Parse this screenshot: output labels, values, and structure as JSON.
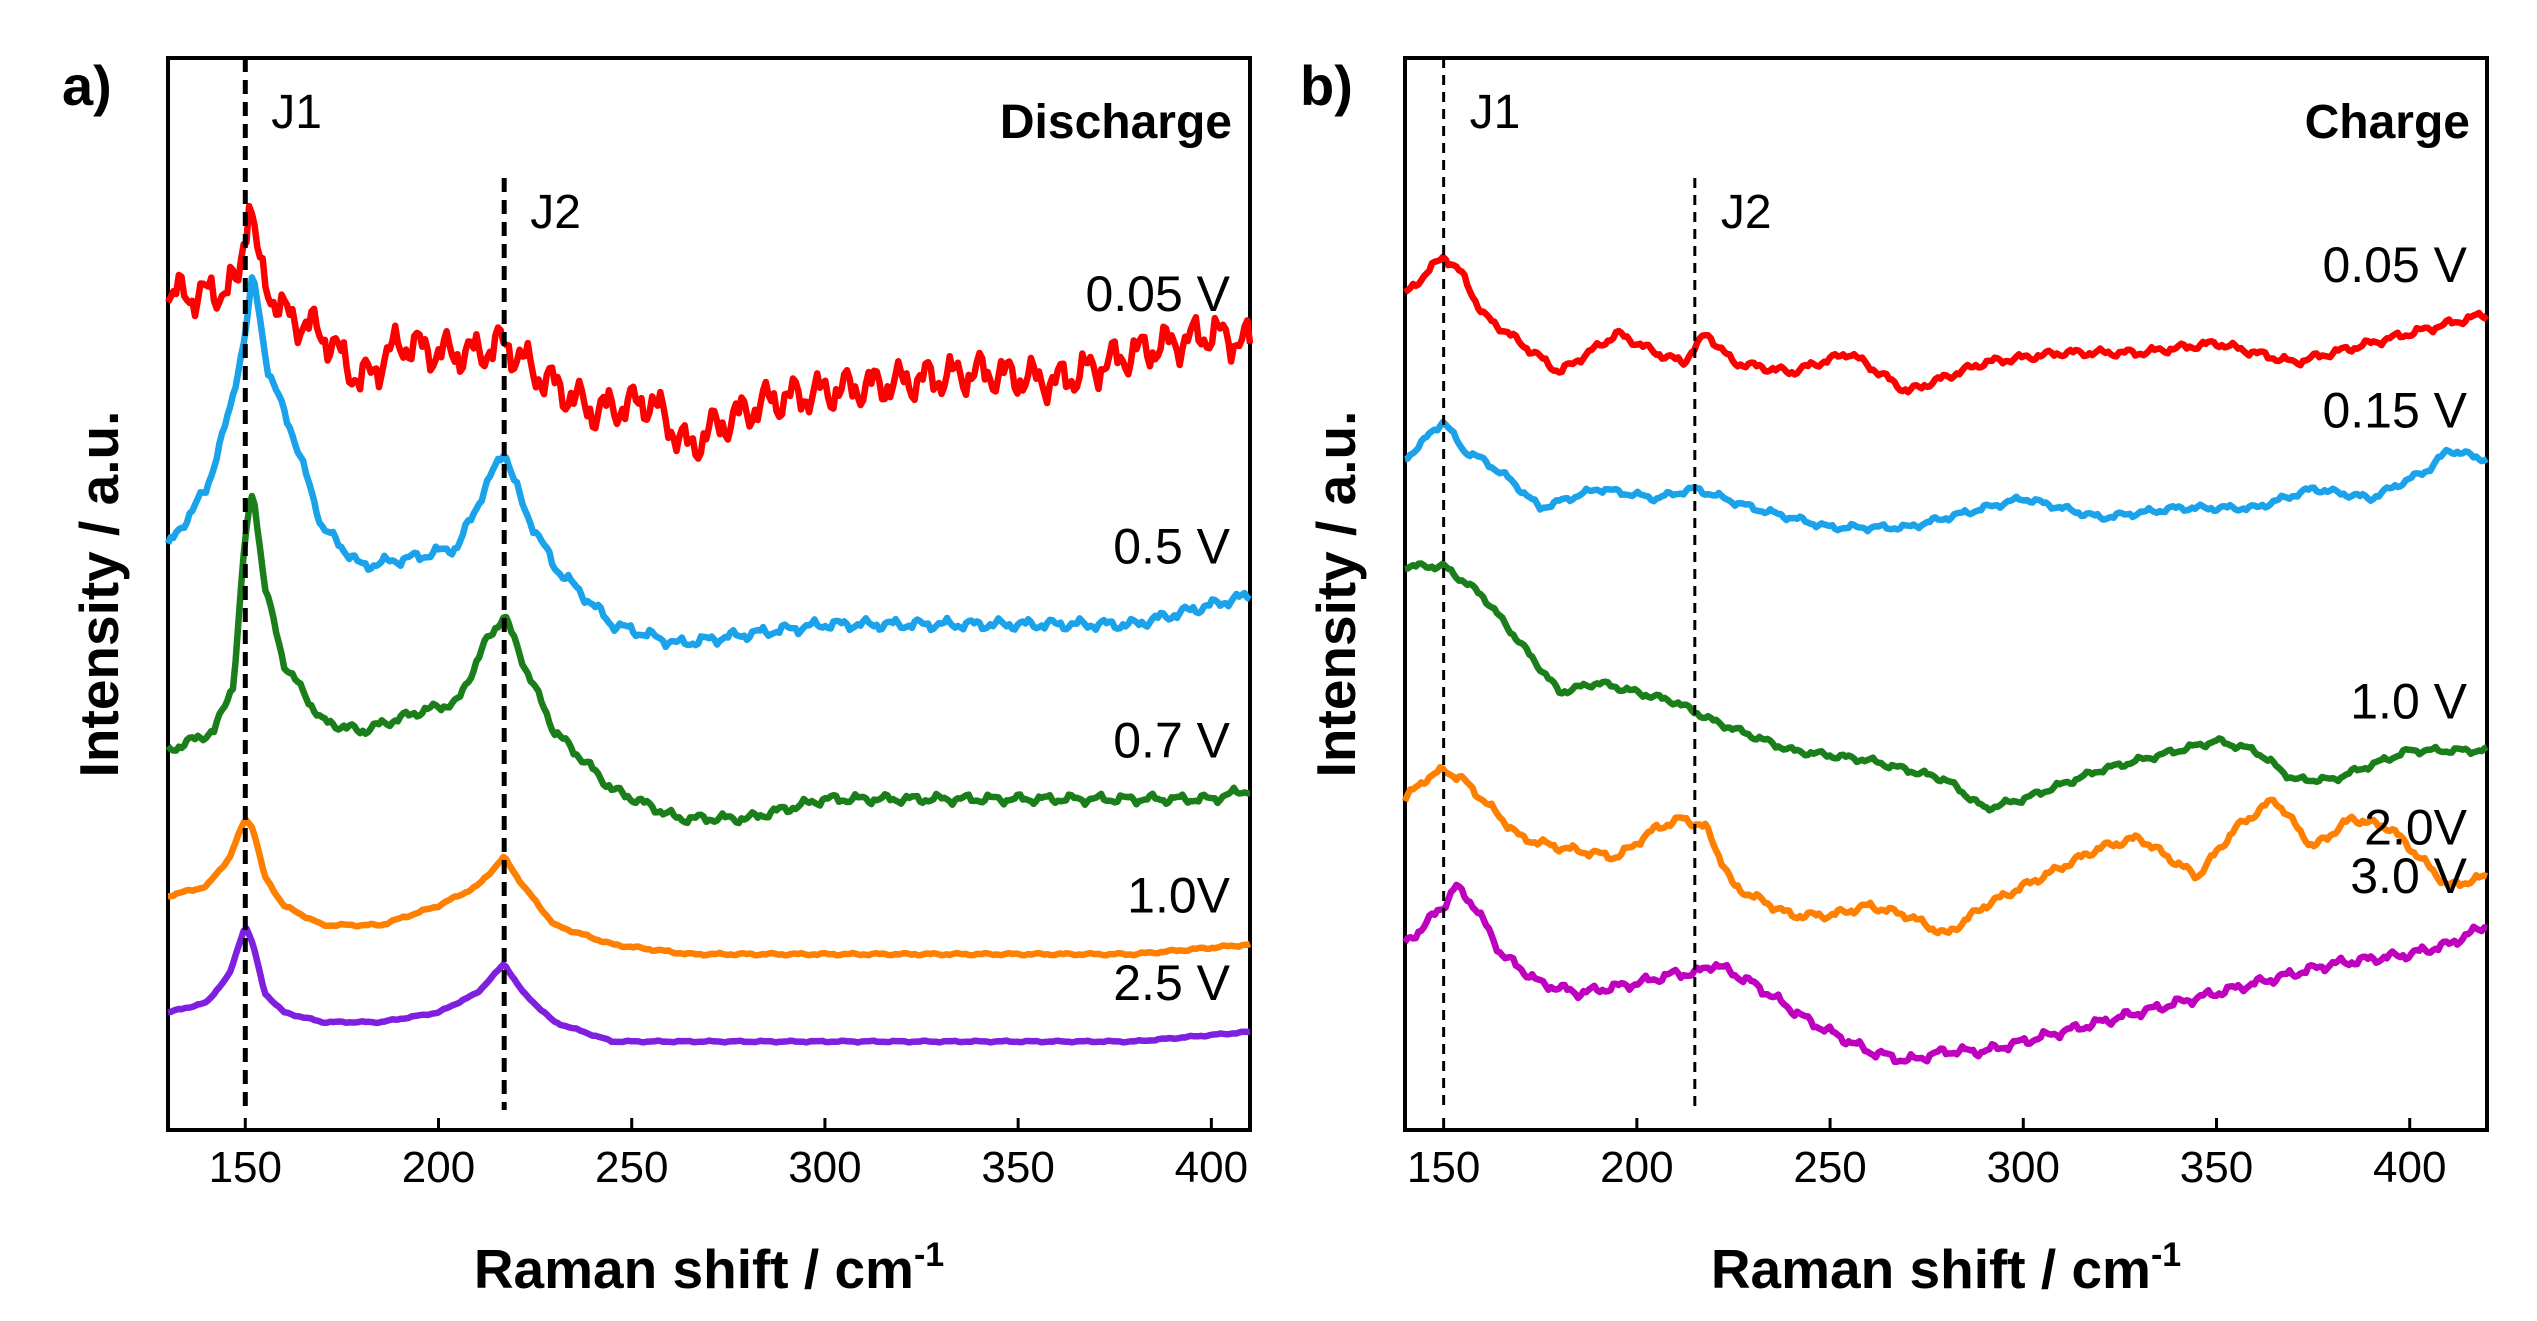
{
  "chart_data": [
    {
      "panel": "a)",
      "type": "line",
      "title": "Discharge",
      "xlabel": "Raman shift / cm",
      "xlabel_sup": "-1",
      "ylabel": "Intensity / a.u.",
      "xlim": [
        130,
        410
      ],
      "xticks": [
        150,
        200,
        250,
        300,
        350,
        400
      ],
      "ylim": [
        0,
        100
      ],
      "peaks": [
        {
          "name": "J1",
          "x": 150
        },
        {
          "name": "J2",
          "x": 217
        }
      ],
      "series": [
        {
          "name": "0.05 V",
          "color": "#ff0000",
          "noise": 2.6,
          "x": [
            130,
            140,
            148,
            151,
            154,
            160,
            170,
            180,
            190,
            200,
            210,
            217,
            225,
            240,
            255,
            265,
            270,
            285,
            300,
            320,
            340,
            360,
            380,
            400,
            410
          ],
          "y": [
            82,
            82,
            83,
            92,
            84,
            80,
            78,
            73,
            77,
            76,
            76,
            77,
            74,
            70,
            71,
            66,
            68,
            71,
            72,
            73,
            74,
            73,
            76,
            78,
            77
          ]
        },
        {
          "name": "0.5 V",
          "color": "#1aa3ea",
          "noise": 0.7,
          "x": [
            130,
            140,
            146,
            150,
            152,
            156,
            162,
            170,
            180,
            195,
            205,
            212,
            217,
            222,
            230,
            245,
            262,
            280,
            300,
            340,
            380,
            400,
            410
          ],
          "y": [
            56,
            62,
            70,
            78,
            84,
            74,
            68,
            58,
            54,
            55,
            56,
            62,
            66,
            60,
            54,
            48,
            46,
            47,
            48,
            48,
            48,
            50,
            51
          ]
        },
        {
          "name": "0.7 V",
          "color": "#1a7f1a",
          "noise": 0.6,
          "x": [
            130,
            142,
            147,
            150,
            152,
            155,
            160,
            170,
            180,
            195,
            205,
            212,
            217,
            222,
            230,
            245,
            262,
            280,
            300,
            340,
            380,
            400,
            410
          ],
          "y": [
            35,
            37,
            42,
            57,
            62,
            52,
            44,
            38,
            37,
            39,
            40,
            46,
            49,
            44,
            37,
            31,
            28,
            28,
            30,
            30,
            30,
            30,
            31
          ]
        },
        {
          "name": "1.0V",
          "color": "#ff7f00",
          "noise": 0.15,
          "x": [
            130,
            140,
            146,
            150,
            152,
            155,
            160,
            170,
            185,
            200,
            210,
            217,
            222,
            230,
            245,
            265,
            300,
            340,
            380,
            410
          ],
          "y": [
            20,
            21,
            24,
            28,
            27,
            22,
            19,
            17,
            17,
            19,
            21,
            24,
            21,
            17,
            15,
            14,
            14,
            14,
            14,
            15
          ]
        },
        {
          "name": "2.5 V",
          "color": "#7f1fe0",
          "noise": 0.1,
          "x": [
            130,
            140,
            146,
            150,
            152,
            155,
            160,
            170,
            185,
            200,
            210,
            217,
            222,
            230,
            245,
            265,
            300,
            340,
            380,
            410
          ],
          "y": [
            8,
            9,
            12,
            17,
            15,
            10,
            8,
            7,
            7,
            8,
            10,
            13,
            10,
            7,
            5,
            5,
            5,
            5,
            5,
            6
          ]
        }
      ]
    },
    {
      "panel": "b)",
      "type": "line",
      "title": "Charge",
      "xlabel": "Raman shift / cm",
      "xlabel_sup": "-1",
      "ylabel": "Intensity / a.u.",
      "xlim": [
        140,
        420
      ],
      "xticks": [
        150,
        200,
        250,
        300,
        350,
        400
      ],
      "ylim": [
        0,
        100
      ],
      "peaks": [
        {
          "name": "J1",
          "x": 150
        },
        {
          "name": "J2",
          "x": 215
        }
      ],
      "series": [
        {
          "name": "0.05 V",
          "color": "#ff0000",
          "noise": 0.5,
          "x": [
            140,
            145,
            150,
            155,
            160,
            170,
            180,
            195,
            205,
            212,
            218,
            225,
            240,
            255,
            270,
            290,
            310,
            330,
            350,
            370,
            390,
            410,
            420
          ],
          "y": [
            82,
            84,
            86,
            84,
            80,
            77,
            74,
            78,
            76,
            75,
            78,
            75,
            74,
            76,
            72,
            75,
            76,
            76,
            77,
            75,
            77,
            79,
            80
          ]
        },
        {
          "name": "0.15 V",
          "color": "#1aa3ea",
          "noise": 0.4,
          "x": [
            140,
            145,
            150,
            155,
            160,
            167,
            175,
            190,
            205,
            215,
            230,
            250,
            270,
            290,
            300,
            320,
            340,
            360,
            375,
            390,
            405,
            410,
            420
          ],
          "y": [
            65,
            67,
            69,
            66,
            65,
            63,
            60,
            62,
            61,
            62,
            60,
            58,
            58,
            60,
            61,
            59,
            60,
            60,
            62,
            61,
            64,
            66,
            65
          ]
        },
        {
          "name": "1.0 V",
          "color": "#1a7f1a",
          "noise": 0.4,
          "x": [
            140,
            150,
            160,
            170,
            180,
            190,
            200,
            210,
            220,
            240,
            260,
            280,
            290,
            300,
            320,
            340,
            350,
            360,
            370,
            380,
            400,
            420
          ],
          "y": [
            54,
            54,
            51,
            46,
            41,
            42,
            41,
            40,
            38,
            35,
            34,
            32,
            29,
            30,
            33,
            35,
            36,
            35,
            32,
            32,
            35,
            35
          ]
        },
        {
          "name": "2.0V",
          "color": "#ff7f00",
          "noise": 0.5,
          "x": [
            140,
            145,
            150,
            155,
            160,
            170,
            180,
            195,
            205,
            212,
            218,
            225,
            240,
            250,
            260,
            270,
            280,
            290,
            300,
            320,
            330,
            345,
            355,
            365,
            375,
            385,
            395,
            410,
            420
          ],
          "y": [
            30,
            32,
            33,
            32,
            30,
            26,
            25,
            24,
            27,
            28,
            27,
            21,
            18,
            18,
            19,
            18,
            16,
            19,
            21,
            25,
            26,
            22,
            27,
            30,
            25,
            28,
            27,
            21,
            22
          ]
        },
        {
          "name": "3.0 V",
          "color": "#bf00bf",
          "noise": 0.6,
          "x": [
            140,
            145,
            150,
            153,
            158,
            165,
            175,
            185,
            200,
            210,
            215,
            220,
            230,
            245,
            260,
            270,
            280,
            290,
            300,
            320,
            340,
            360,
            380,
            400,
            410,
            420
          ],
          "y": [
            15,
            17,
            19,
            21,
            19,
            14,
            11,
            10,
            11,
            12,
            12,
            13,
            11,
            7,
            4,
            3,
            4,
            4,
            5,
            7,
            9,
            11,
            13,
            14,
            15,
            17
          ]
        }
      ]
    }
  ]
}
